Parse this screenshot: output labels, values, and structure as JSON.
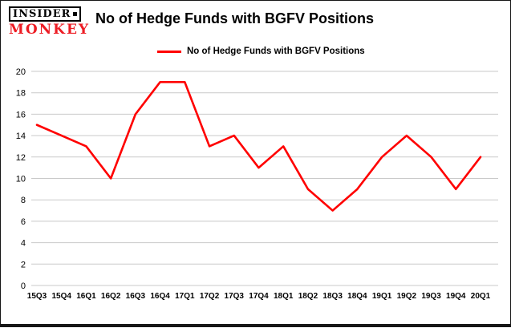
{
  "logo": {
    "line1": "INSIDER",
    "line2": "MONKEY"
  },
  "title": "No of Hedge Funds with BGFV Positions",
  "legend": {
    "label": "No of Hedge Funds with BGFV Positions",
    "color": "#ff0000"
  },
  "colors": {
    "line": "#ff0000",
    "grid": "#c9c9c9",
    "text": "#000000",
    "background": "#ffffff",
    "frame": "#161616",
    "brand_red": "#ed1c24"
  },
  "chart_data": {
    "type": "line",
    "title": "No of Hedge Funds with BGFV Positions",
    "xlabel": "",
    "ylabel": "",
    "categories": [
      "15Q3",
      "15Q4",
      "16Q1",
      "16Q2",
      "16Q3",
      "16Q4",
      "17Q1",
      "17Q2",
      "17Q3",
      "17Q4",
      "18Q1",
      "18Q2",
      "18Q3",
      "18Q4",
      "19Q1",
      "19Q2",
      "19Q3",
      "19Q4",
      "20Q1"
    ],
    "series": [
      {
        "name": "No of Hedge Funds with BGFV Positions",
        "color": "#ff0000",
        "values": [
          15,
          14,
          13,
          10,
          16,
          19,
          19,
          13,
          14,
          11,
          13,
          9,
          7,
          9,
          12,
          14,
          12,
          9,
          12
        ]
      }
    ],
    "ylim": [
      0,
      20
    ],
    "y_ticks": [
      0,
      2,
      4,
      6,
      8,
      10,
      12,
      14,
      16,
      18,
      20
    ],
    "grid": true,
    "legend_position": "top-left"
  }
}
